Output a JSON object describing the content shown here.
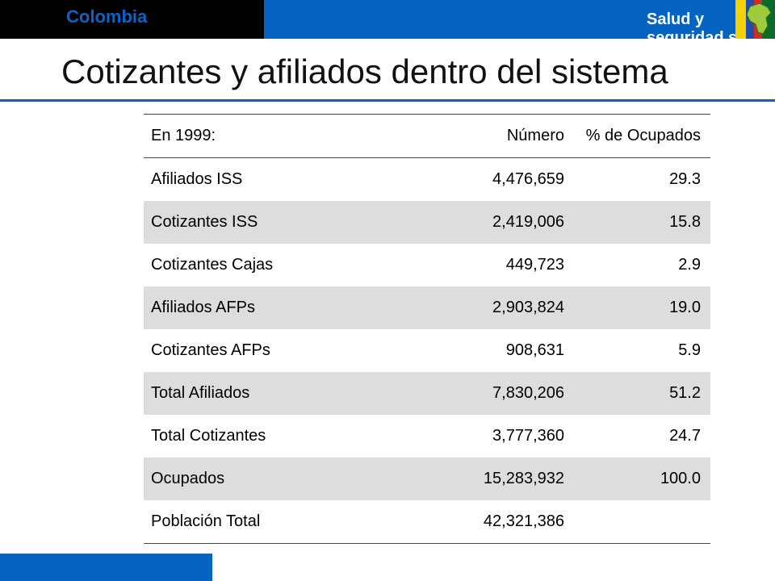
{
  "header": {
    "brand": "Colombia",
    "section": "Salud y seguridad social",
    "icon": "colombia-map-icon"
  },
  "title": "Cotizantes y afiliados dentro del sistema",
  "colors": {
    "accent": "#0563c1",
    "brand_text": "#0a63c8",
    "row_shade": "#dddddd"
  },
  "table": {
    "headers": [
      "En 1999:",
      "Número",
      "% de Ocupados"
    ],
    "rows": [
      [
        "Afiliados ISS",
        "4,476,659",
        "29.3"
      ],
      [
        "Cotizantes ISS",
        "2,419,006",
        "15.8"
      ],
      [
        "Cotizantes Cajas",
        "449,723",
        "2.9"
      ],
      [
        "Afiliados AFPs",
        "2,903,824",
        "19.0"
      ],
      [
        "Cotizantes AFPs",
        "908,631",
        "5.9"
      ],
      [
        "Total Afiliados",
        "7,830,206",
        "51.2"
      ],
      [
        "Total Cotizantes",
        "3,777,360",
        "24.7"
      ],
      [
        "Ocupados",
        "15,283,932",
        "100.0"
      ],
      [
        "Población Total",
        "42,321,386",
        ""
      ]
    ]
  }
}
